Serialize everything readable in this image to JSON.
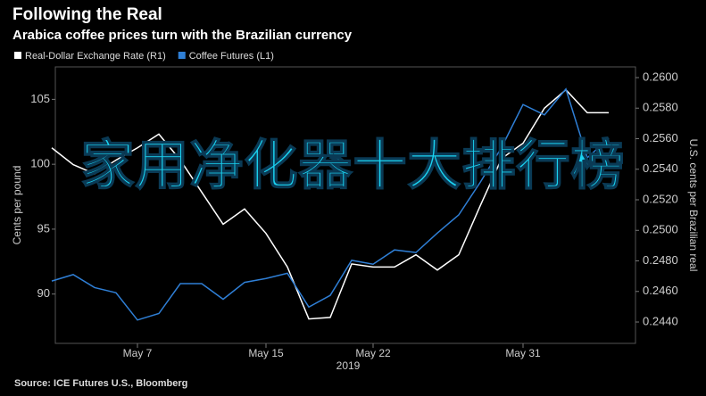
{
  "chart_data": {
    "type": "line",
    "title": "Following the Real",
    "subtitle": "Arabica coffee prices turn with the Brazilian currency",
    "y_label": "Cents per pound",
    "y2_label": "U.S. cents per Brazilian real",
    "x_label": "2019",
    "source": "Source: ICE Futures U.S., Bloomberg",
    "overlay": "家用净化器十大排行榜",
    "categories": [
      null,
      null,
      null,
      null,
      "May 7",
      null,
      null,
      null,
      null,
      null,
      "May 15",
      null,
      null,
      null,
      null,
      "May 22",
      null,
      null,
      null,
      null,
      null,
      null,
      "May 31",
      null,
      null,
      null,
      null
    ],
    "series": [
      {
        "name": "Real-Dollar Exchange Rate (R1)",
        "color": "#ffffff",
        "axis": "y2",
        "values": [
          0.2554,
          0.2543,
          0.2537,
          0.2546,
          0.2554,
          0.2563,
          0.2546,
          0.2525,
          0.2504,
          0.2514,
          0.2498,
          0.2476,
          0.2442,
          0.2443,
          0.2478,
          0.2476,
          0.2476,
          0.2484,
          0.2474,
          0.2484,
          0.2516,
          0.2547,
          0.2557,
          0.258,
          0.2592,
          0.2577,
          0.2577
        ]
      },
      {
        "name": "Coffee Futures (L1)",
        "color": "#2f7fd6",
        "values": [
          91.0,
          91.5,
          90.5,
          90.1,
          88.0,
          88.5,
          90.8,
          90.8,
          89.6,
          90.9,
          91.2,
          91.6,
          89.0,
          89.9,
          92.6,
          92.3,
          93.4,
          93.2,
          94.7,
          96.1,
          98.6,
          101.3,
          104.6,
          103.8,
          105.8,
          100.5,
          102.0
        ]
      }
    ],
    "ylim": [
      86.2,
      107.5
    ],
    "yticks": [
      90,
      95,
      100,
      105
    ],
    "y2lim": [
      0.2426,
      0.2607
    ],
    "y2ticks": [
      {
        "value": 0.244,
        "label": "0.2440"
      },
      {
        "value": 0.246,
        "label": "0.2460"
      },
      {
        "value": 0.248,
        "label": "0.2480"
      },
      {
        "value": 0.25,
        "label": "0.2500"
      },
      {
        "value": 0.252,
        "label": "0.2520"
      },
      {
        "value": 0.254,
        "label": "0.2540"
      },
      {
        "value": 0.256,
        "label": "0.2560"
      },
      {
        "value": 0.258,
        "label": "0.2580"
      },
      {
        "value": 0.26,
        "label": "0.2600"
      }
    ]
  }
}
